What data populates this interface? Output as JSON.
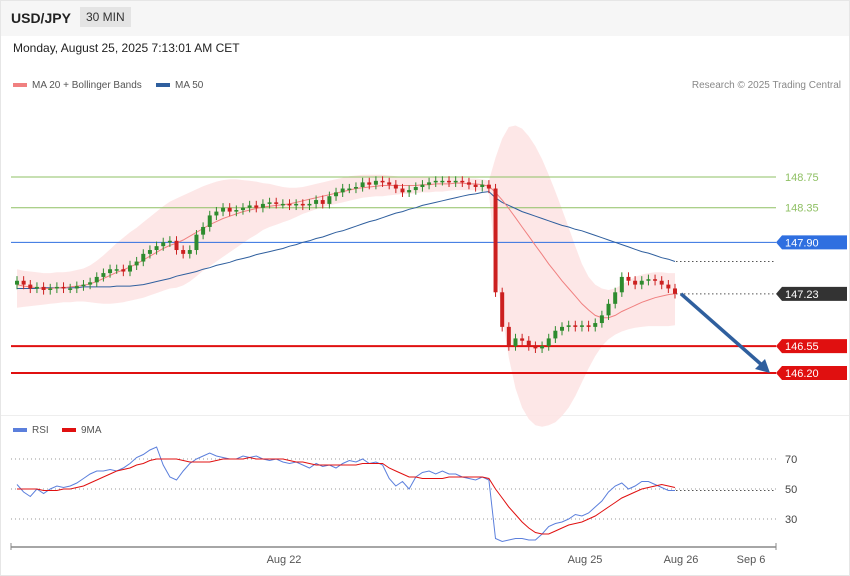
{
  "header": {
    "pair": "USD/JPY",
    "timeframe": "30 MIN",
    "datetime": "Monday, August 25, 2025 7:13:01 AM CET"
  },
  "legend": {
    "ma20_label": "MA 20 + Bollinger Bands",
    "ma50_label": "MA 50",
    "credit": "Research © 2025 Trading Central"
  },
  "rsi_legend": {
    "rsi_label": "RSI",
    "ma9_label": "9MA"
  },
  "colors": {
    "ma20": "#f08080",
    "ma50": "#2f5f9e",
    "bollinger_fill": "#fde3e3",
    "support": "#e01010",
    "resistance": "#8fc064",
    "pivot": "#2f6fe0",
    "last_price": "#333333",
    "candle_up": "#2e8b2e",
    "candle_down": "#cc2020",
    "forecast_arrow": "#2f5f9e",
    "rsi": "#5b7fdc",
    "rsi_ma": "#e01010"
  },
  "chart_data": [
    {
      "type": "candlestick",
      "ylim": [
        145.5,
        149.4
      ],
      "x_ticks": [
        "Aug 22",
        "Aug 25",
        "Aug 26",
        "Sep 6"
      ],
      "levels": [
        {
          "value": 148.75,
          "label": "148.75",
          "kind": "resistance"
        },
        {
          "value": 148.35,
          "label": "148.35",
          "kind": "resistance"
        },
        {
          "value": 147.9,
          "label": "147.90",
          "kind": "pivot"
        },
        {
          "value": 147.23,
          "label": "147.23",
          "kind": "last"
        },
        {
          "value": 146.55,
          "label": "146.55",
          "kind": "support"
        },
        {
          "value": 146.2,
          "label": "146.20",
          "kind": "support"
        }
      ],
      "forecast": {
        "from": 147.23,
        "to": 146.2,
        "direction": "down"
      },
      "close": [
        147.4,
        147.35,
        147.3,
        147.32,
        147.28,
        147.3,
        147.32,
        147.3,
        147.3,
        147.33,
        147.35,
        147.38,
        147.45,
        147.5,
        147.55,
        147.55,
        147.52,
        147.6,
        147.65,
        147.75,
        147.8,
        147.85,
        147.9,
        147.92,
        147.8,
        147.75,
        147.8,
        148.0,
        148.1,
        148.25,
        148.3,
        148.35,
        148.3,
        148.32,
        148.35,
        148.38,
        148.35,
        148.4,
        148.42,
        148.4,
        148.4,
        148.38,
        148.4,
        148.38,
        148.4,
        148.45,
        148.4,
        148.5,
        148.55,
        148.6,
        148.6,
        148.62,
        148.68,
        148.65,
        148.7,
        148.68,
        148.65,
        148.6,
        148.55,
        148.58,
        148.62,
        148.65,
        148.68,
        148.7,
        148.7,
        148.68,
        148.7,
        148.68,
        148.65,
        148.62,
        148.65,
        148.6,
        147.25,
        146.8,
        146.55,
        146.65,
        146.62,
        146.55,
        146.52,
        146.55,
        146.65,
        146.75,
        146.8,
        146.82,
        146.8,
        146.82,
        146.8,
        146.85,
        146.95,
        147.1,
        147.25,
        147.45,
        147.4,
        147.35,
        147.4,
        147.42,
        147.4,
        147.35,
        147.3,
        147.23
      ],
      "ma20": [
        147.35,
        147.33,
        147.32,
        147.31,
        147.3,
        147.3,
        147.31,
        147.31,
        147.32,
        147.33,
        147.34,
        147.36,
        147.39,
        147.43,
        147.47,
        147.51,
        147.54,
        147.58,
        147.62,
        147.67,
        147.72,
        147.77,
        147.82,
        147.86,
        147.89,
        147.93,
        147.98,
        148.03,
        148.08,
        148.13,
        148.17,
        148.21,
        148.24,
        148.27,
        148.3,
        148.32,
        148.34,
        148.36,
        148.37,
        148.38,
        148.39,
        148.4,
        148.42,
        148.44,
        148.46,
        148.48,
        148.5,
        148.52,
        148.54,
        148.56,
        148.58,
        148.6,
        148.61,
        148.62,
        148.63,
        148.64,
        148.64,
        148.64,
        148.64,
        148.64,
        148.64,
        148.65,
        148.65,
        148.66,
        148.66,
        148.66,
        148.67,
        148.67,
        148.66,
        148.66,
        148.65,
        148.63,
        148.55,
        148.45,
        148.34,
        148.22,
        148.1,
        147.98,
        147.86,
        147.74,
        147.62,
        147.51,
        147.4,
        147.3,
        147.2,
        147.1,
        147.02,
        146.95,
        146.92,
        146.92,
        146.95,
        147.0,
        147.04,
        147.08,
        147.12,
        147.15,
        147.18,
        147.2,
        147.22,
        147.23
      ],
      "ma50": [
        147.3,
        147.3,
        147.3,
        147.3,
        147.31,
        147.31,
        147.31,
        147.31,
        147.31,
        147.31,
        147.32,
        147.32,
        147.32,
        147.32,
        147.32,
        147.33,
        147.33,
        147.33,
        147.34,
        147.35,
        147.37,
        147.39,
        147.41,
        147.43,
        147.46,
        147.48,
        147.5,
        147.52,
        147.55,
        147.57,
        147.6,
        147.62,
        147.64,
        147.67,
        147.69,
        147.71,
        147.74,
        147.76,
        147.78,
        147.8,
        147.82,
        147.85,
        147.87,
        147.9,
        147.92,
        147.95,
        147.97,
        148.0,
        148.03,
        148.05,
        148.08,
        148.11,
        148.14,
        148.17,
        148.19,
        148.22,
        148.25,
        148.28,
        148.3,
        148.33,
        148.35,
        148.38,
        148.4,
        148.42,
        148.44,
        148.46,
        148.48,
        148.5,
        148.52,
        148.53,
        148.55,
        148.56,
        148.48,
        148.42,
        148.38,
        148.34,
        148.3,
        148.27,
        148.24,
        148.21,
        148.18,
        148.15,
        148.12,
        148.1,
        148.07,
        148.05,
        148.02,
        147.99,
        147.96,
        147.93,
        147.9,
        147.87,
        147.84,
        147.81,
        147.78,
        147.76,
        147.73,
        147.7,
        147.68,
        147.65
      ],
      "bb_upper": [
        147.55,
        147.53,
        147.52,
        147.51,
        147.5,
        147.5,
        147.51,
        147.51,
        147.52,
        147.54,
        147.56,
        147.6,
        147.66,
        147.73,
        147.81,
        147.89,
        147.96,
        148.03,
        148.09,
        148.16,
        148.23,
        148.3,
        148.37,
        148.43,
        148.47,
        148.51,
        148.55,
        148.59,
        148.63,
        148.66,
        148.69,
        148.71,
        148.72,
        148.72,
        148.71,
        148.7,
        148.69,
        148.67,
        148.66,
        148.64,
        148.62,
        148.61,
        148.61,
        148.62,
        148.64,
        148.66,
        148.68,
        148.7,
        148.72,
        148.74,
        148.76,
        148.77,
        148.78,
        148.78,
        148.78,
        148.78,
        148.77,
        148.76,
        148.75,
        148.75,
        148.75,
        148.75,
        148.75,
        148.75,
        148.75,
        148.74,
        148.74,
        148.74,
        148.73,
        148.73,
        148.72,
        148.7,
        149.0,
        149.25,
        149.4,
        149.42,
        149.38,
        149.28,
        149.15,
        148.98,
        148.78,
        148.56,
        148.33,
        148.09,
        147.85,
        147.62,
        147.45,
        147.35,
        147.3,
        147.28,
        147.3,
        147.35,
        147.4,
        147.45,
        147.48,
        147.5,
        147.51,
        147.51,
        147.5,
        147.5
      ],
      "bb_lower": [
        147.05,
        147.06,
        147.07,
        147.08,
        147.09,
        147.1,
        147.11,
        147.12,
        147.12,
        147.13,
        147.13,
        147.12,
        147.11,
        147.1,
        147.1,
        147.11,
        147.12,
        147.14,
        147.16,
        147.18,
        147.21,
        147.24,
        147.27,
        147.3,
        147.31,
        147.34,
        147.39,
        147.46,
        147.53,
        147.59,
        147.65,
        147.71,
        147.77,
        147.83,
        147.89,
        147.95,
        148.0,
        148.06,
        148.1,
        148.13,
        148.16,
        148.19,
        148.23,
        148.27,
        148.3,
        148.33,
        148.36,
        148.38,
        148.4,
        148.42,
        148.44,
        148.46,
        148.48,
        148.49,
        148.5,
        148.5,
        148.51,
        148.52,
        148.53,
        148.53,
        148.54,
        148.55,
        148.55,
        148.56,
        148.56,
        148.57,
        148.58,
        148.58,
        148.58,
        148.58,
        148.57,
        148.56,
        147.6,
        146.95,
        146.4,
        146.0,
        145.75,
        145.6,
        145.52,
        145.5,
        145.52,
        145.56,
        145.64,
        145.75,
        145.9,
        146.08,
        146.26,
        146.42,
        146.55,
        146.64,
        146.7,
        146.74,
        146.77,
        146.79,
        146.8,
        146.81,
        146.81,
        146.81,
        146.81,
        146.82
      ]
    },
    {
      "type": "line",
      "ylim": [
        10,
        90
      ],
      "y_ticks": [
        30,
        50,
        70
      ],
      "rsi": [
        53,
        48,
        45,
        50,
        47,
        50,
        52,
        51,
        52,
        54,
        57,
        60,
        62,
        62,
        63,
        62,
        64,
        67,
        71,
        73,
        76,
        78,
        66,
        58,
        56,
        62,
        67,
        70,
        72,
        74,
        72,
        71,
        70,
        70,
        72,
        71,
        72,
        70,
        69,
        70,
        68,
        67,
        68,
        66,
        64,
        67,
        65,
        66,
        64,
        67,
        69,
        68,
        70,
        67,
        68,
        66,
        57,
        52,
        55,
        50,
        58,
        61,
        62,
        60,
        62,
        60,
        60,
        58,
        57,
        56,
        58,
        56,
        17,
        15,
        16,
        17,
        17,
        16,
        16,
        20,
        25,
        27,
        28,
        30,
        33,
        32,
        34,
        38,
        42,
        48,
        52,
        54,
        50,
        52,
        55,
        55,
        53,
        51,
        49,
        49
      ],
      "ma9": [
        50,
        50,
        50,
        50,
        49,
        49,
        49,
        50,
        50,
        51,
        52,
        54,
        56,
        58,
        60,
        62,
        63,
        64,
        66,
        67,
        69,
        70,
        70,
        70,
        70,
        69,
        68,
        68,
        68,
        68,
        69,
        70,
        70,
        70,
        70,
        71,
        70,
        70,
        70,
        70,
        70,
        69,
        68,
        68,
        67,
        66,
        66,
        66,
        66,
        66,
        66,
        66,
        67,
        67,
        67,
        67,
        64,
        62,
        60,
        58,
        58,
        57,
        57,
        57,
        57,
        58,
        58,
        58,
        58,
        58,
        58,
        57,
        50,
        44,
        38,
        33,
        28,
        24,
        21,
        20,
        20,
        22,
        24,
        26,
        27,
        28,
        30,
        32,
        35,
        38,
        41,
        44,
        46,
        48,
        50,
        51,
        52,
        53,
        52,
        51
      ]
    }
  ]
}
